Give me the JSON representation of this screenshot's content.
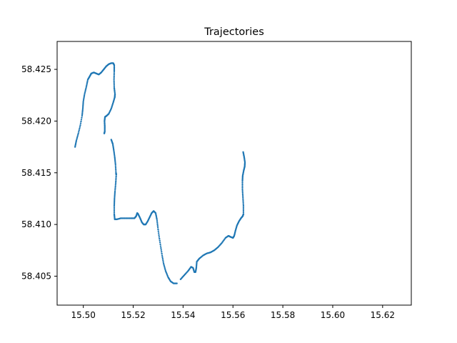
{
  "chart_data": {
    "type": "scatter",
    "title": "Trajectories",
    "xlabel": "",
    "ylabel": "",
    "xlim": [
      15.4895,
      15.6315
    ],
    "ylim": [
      58.4022,
      58.4277
    ],
    "x_ticks": [
      "15.50",
      "15.52",
      "15.54",
      "15.56",
      "15.58",
      "15.60",
      "15.62"
    ],
    "y_ticks": [
      "58.405",
      "58.410",
      "58.415",
      "58.420",
      "58.425"
    ],
    "grid": false,
    "legend": "none",
    "color": "#1f77b4",
    "series": [
      {
        "values": [
          [
            15.4967,
            58.4175
          ],
          [
            15.4972,
            58.4181
          ],
          [
            15.498,
            58.4188
          ],
          [
            15.4988,
            58.4196
          ],
          [
            15.4995,
            58.4205
          ],
          [
            15.4998,
            58.4212
          ],
          [
            15.5,
            58.4219
          ],
          [
            15.5005,
            58.4226
          ],
          [
            15.5012,
            58.4233
          ],
          [
            15.5018,
            58.424
          ],
          [
            15.5025,
            58.4243
          ],
          [
            15.5032,
            58.4246
          ],
          [
            15.5042,
            58.4247
          ],
          [
            15.5052,
            58.4246
          ],
          [
            15.5062,
            58.4245
          ],
          [
            15.5072,
            58.4247
          ],
          [
            15.5082,
            58.425
          ],
          [
            15.5092,
            58.4253
          ],
          [
            15.5102,
            58.4255
          ],
          [
            15.5112,
            58.4256
          ],
          [
            15.512,
            58.4256
          ],
          [
            15.5124,
            58.4254
          ],
          [
            15.5124,
            58.4248
          ],
          [
            15.5123,
            58.424
          ],
          [
            15.5124,
            58.4232
          ],
          [
            15.5127,
            58.4226
          ],
          [
            15.5126,
            58.4223
          ],
          [
            15.512,
            58.4218
          ],
          [
            15.5112,
            58.4212
          ],
          [
            15.5102,
            58.4207
          ],
          [
            15.5093,
            58.4205
          ],
          [
            15.5087,
            58.4204
          ],
          [
            15.5085,
            58.42
          ],
          [
            15.5086,
            58.4195
          ],
          [
            15.5086,
            58.419
          ],
          [
            15.5084,
            58.4188
          ]
        ]
      },
      {
        "values": [
          [
            15.5112,
            58.4182
          ],
          [
            15.5118,
            58.4178
          ],
          [
            15.5122,
            58.4172
          ],
          [
            15.5126,
            58.4165
          ],
          [
            15.5129,
            58.4158
          ],
          [
            15.5131,
            58.415
          ],
          [
            15.5132,
            58.4148
          ],
          [
            15.513,
            58.414
          ],
          [
            15.5127,
            58.4132
          ],
          [
            15.5125,
            58.4125
          ],
          [
            15.5124,
            58.4118
          ],
          [
            15.5124,
            58.411
          ],
          [
            15.5126,
            58.4105
          ],
          [
            15.5135,
            58.4105
          ],
          [
            15.515,
            58.4106
          ],
          [
            15.517,
            58.4106
          ],
          [
            15.519,
            58.4106
          ],
          [
            15.5205,
            58.4106
          ],
          [
            15.5212,
            58.4108
          ],
          [
            15.5216,
            58.4111
          ],
          [
            15.522,
            58.411
          ],
          [
            15.5228,
            58.4106
          ],
          [
            15.5235,
            58.4102
          ],
          [
            15.5242,
            58.41
          ],
          [
            15.525,
            58.41
          ],
          [
            15.5258,
            58.4103
          ],
          [
            15.5266,
            58.4107
          ],
          [
            15.5274,
            58.4111
          ],
          [
            15.5282,
            58.4113
          ],
          [
            15.529,
            58.4111
          ],
          [
            15.5295,
            58.4105
          ],
          [
            15.5299,
            58.4097
          ],
          [
            15.5304,
            58.4088
          ],
          [
            15.531,
            58.4079
          ],
          [
            15.5316,
            58.407
          ],
          [
            15.5322,
            58.4062
          ],
          [
            15.533,
            58.4055
          ],
          [
            15.534,
            58.4049
          ],
          [
            15.535,
            58.4045
          ],
          [
            15.5362,
            58.4043
          ],
          [
            15.5375,
            58.4043
          ]
        ]
      },
      {
        "values": [
          [
            15.539,
            58.4047
          ],
          [
            15.5405,
            58.4051
          ],
          [
            15.542,
            58.4055
          ],
          [
            15.5432,
            58.4059
          ],
          [
            15.544,
            58.4058
          ],
          [
            15.5445,
            58.4054
          ],
          [
            15.545,
            58.4054
          ],
          [
            15.5453,
            58.4058
          ],
          [
            15.5455,
            58.4064
          ],
          [
            15.5465,
            58.4067
          ],
          [
            15.548,
            58.407
          ],
          [
            15.5495,
            58.4072
          ],
          [
            15.551,
            58.4073
          ],
          [
            15.5525,
            58.4075
          ],
          [
            15.554,
            58.4078
          ],
          [
            15.5555,
            58.4082
          ],
          [
            15.557,
            58.4087
          ],
          [
            15.5582,
            58.4089
          ],
          [
            15.559,
            58.4088
          ],
          [
            15.56,
            58.4087
          ],
          [
            15.5605,
            58.4089
          ],
          [
            15.561,
            58.4094
          ],
          [
            15.5616,
            58.4099
          ],
          [
            15.5624,
            58.4103
          ],
          [
            15.5632,
            58.4106
          ],
          [
            15.5639,
            58.4108
          ],
          [
            15.5642,
            58.411
          ],
          [
            15.5642,
            58.4118
          ],
          [
            15.564,
            58.4126
          ],
          [
            15.5638,
            58.4134
          ],
          [
            15.5638,
            58.4142
          ],
          [
            15.5639,
            58.4147
          ],
          [
            15.5643,
            58.4152
          ],
          [
            15.5647,
            58.4156
          ],
          [
            15.5648,
            58.416
          ],
          [
            15.5645,
            58.4165
          ],
          [
            15.5641,
            58.417
          ]
        ]
      }
    ]
  }
}
